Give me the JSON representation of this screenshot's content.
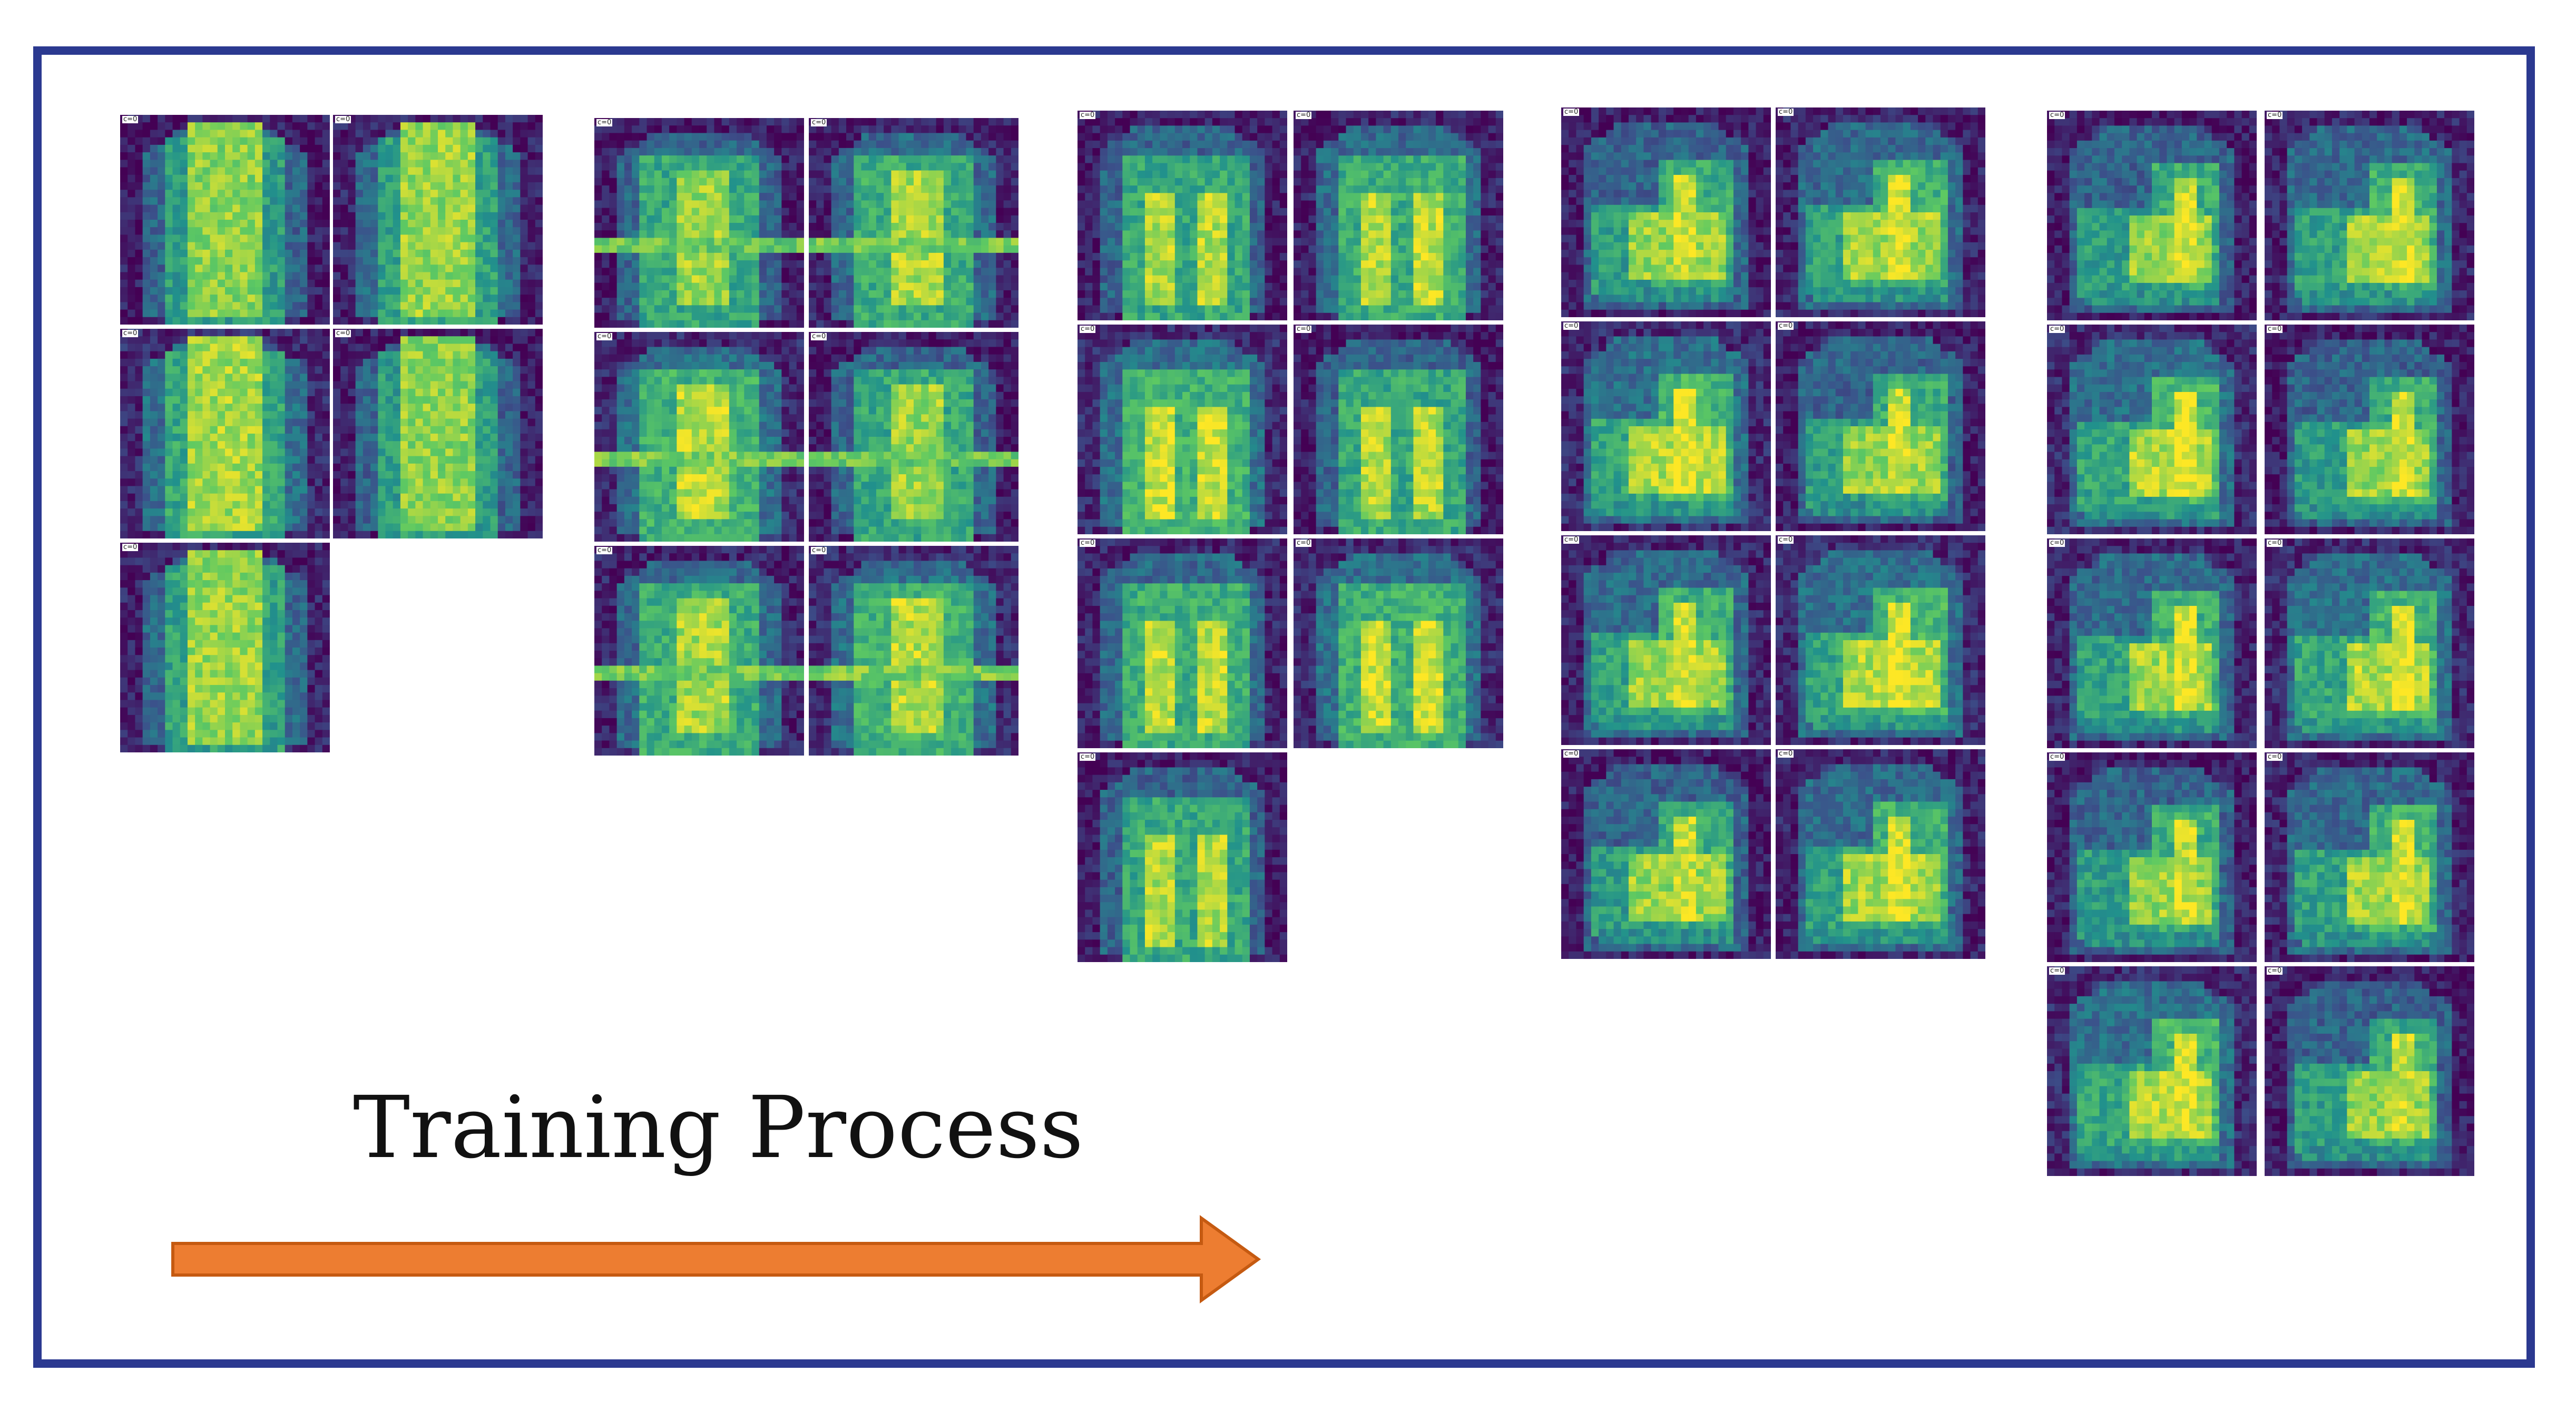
{
  "figure": {
    "caption": "Training Process",
    "frame_color": "#2b3990",
    "arrow_color": "#ed7d31",
    "arrow_stroke": "#c55a11",
    "colormap": [
      "#440154",
      "#3b528b",
      "#21918c",
      "#5ec962",
      "#fde725"
    ],
    "tile_label": "c=0",
    "stages": [
      {
        "stage": 1,
        "tile_count": 5
      },
      {
        "stage": 2,
        "tile_count": 6
      },
      {
        "stage": 3,
        "tile_count": 7
      },
      {
        "stage": 4,
        "tile_count": 8
      },
      {
        "stage": 5,
        "tile_count": 10
      }
    ]
  }
}
